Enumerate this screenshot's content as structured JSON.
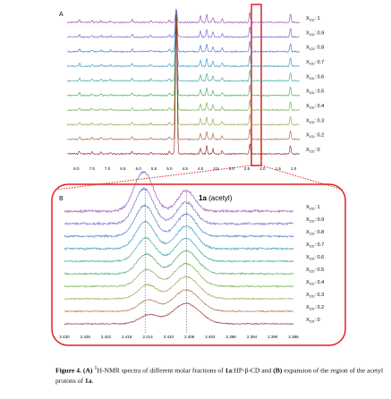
{
  "panel_a": {
    "label": "A",
    "ticks": [
      "8.0",
      "7.5",
      "7.0",
      "6.5",
      "6.0",
      "5.5",
      "5.0",
      "4.5",
      "4.0",
      "3.5",
      "3.0",
      "2.5",
      "2.0",
      "1.5",
      "1.0"
    ]
  },
  "panel_b": {
    "label": "B",
    "annotation": [
      {
        "text": "1a",
        "bold": true
      },
      {
        "text": " (acetyl)"
      }
    ],
    "ticks": [
      "2.430",
      "2.426",
      "2.422",
      "2.418",
      "2.414",
      "2.410",
      "2.406",
      "2.402",
      "2.398",
      "2.394",
      "2.390",
      "2.386"
    ]
  },
  "trace_label": {
    "symbol": "X",
    "sub": "CD",
    "sep": ":"
  },
  "fractions": [
    "1",
    "0.9",
    "0.8",
    "0.7",
    "0.6",
    "0.5",
    "0.4",
    "0.3",
    "0.2",
    "0"
  ],
  "caption": [
    {
      "text": "Figure 4.",
      "bold": true
    },
    {
      "text": " (A) ",
      "bold": true
    },
    {
      "text": "1",
      "sup": true
    },
    {
      "text": "H-NMR spectra of different molar fractions of "
    },
    {
      "text": "1a",
      "bold": true
    },
    {
      "text": ":HP-β-CD and "
    },
    {
      "text": "(B)",
      "bold": true
    },
    {
      "text": " expansion of the region of the acetyl protons of "
    },
    {
      "text": "1a",
      "bold": true
    },
    {
      "text": "."
    }
  ]
}
